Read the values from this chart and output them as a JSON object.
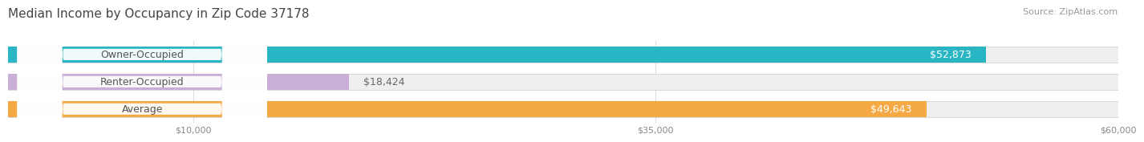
{
  "title": "Median Income by Occupancy in Zip Code 37178",
  "source": "Source: ZipAtlas.com",
  "categories": [
    "Owner-Occupied",
    "Renter-Occupied",
    "Average"
  ],
  "values": [
    52873,
    18424,
    49643
  ],
  "bar_colors": [
    "#29b5c3",
    "#c9aed6",
    "#f5a944"
  ],
  "value_labels": [
    "$52,873",
    "$18,424",
    "$49,643"
  ],
  "xmax": 60000,
  "xticks": [
    10000,
    35000,
    60000
  ],
  "xtick_labels": [
    "$10,000",
    "$35,000",
    "$60,000"
  ],
  "bg_bar_color": "#efefef",
  "title_fontsize": 11,
  "source_fontsize": 8,
  "bar_label_fontsize": 9,
  "value_label_fontsize": 9,
  "tick_fontsize": 8
}
